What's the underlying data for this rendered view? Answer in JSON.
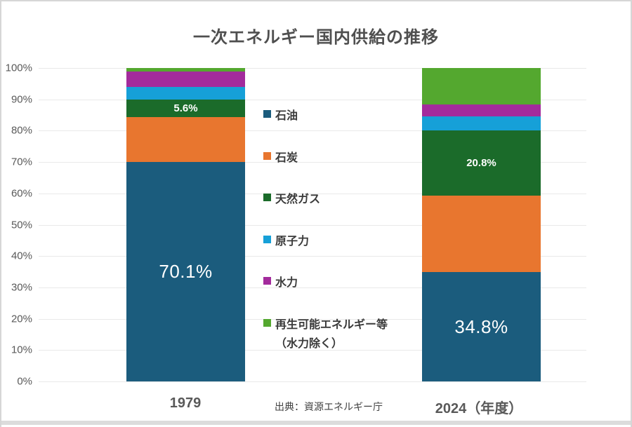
{
  "chart_data": {
    "type": "bar",
    "variant": "stacked-100-percent",
    "title": "一次エネルギー国内供給の推移",
    "source": "出典：資源エネルギー庁",
    "categories": [
      "1979",
      "2024（年度）"
    ],
    "series": [
      {
        "name": "石油",
        "color": "#1B5C7D",
        "values": [
          70.1,
          34.8
        ],
        "labels": [
          "70.1%",
          "34.8%"
        ]
      },
      {
        "name": "石炭",
        "color": "#E8762F",
        "values": [
          14.3,
          24.5
        ],
        "labels": [
          null,
          null
        ]
      },
      {
        "name": "天然ガス",
        "color": "#1B6B2A",
        "values": [
          5.6,
          20.8
        ],
        "labels": [
          "5.6%",
          "20.8%"
        ]
      },
      {
        "name": "原子力",
        "color": "#16A0D8",
        "values": [
          3.9,
          4.5
        ],
        "labels": [
          null,
          null
        ]
      },
      {
        "name": "水力",
        "color": "#A32B9C",
        "values": [
          5.0,
          3.7
        ],
        "labels": [
          null,
          null
        ]
      },
      {
        "name": "再生可能エネルギー等\n（水力除く）",
        "color": "#54A82F",
        "values": [
          1.1,
          11.7
        ],
        "labels": [
          null,
          null
        ]
      }
    ],
    "y_axis": {
      "ticks": [
        "0%",
        "10%",
        "20%",
        "30%",
        "40%",
        "50%",
        "60%",
        "70%",
        "80%",
        "90%",
        "100%"
      ],
      "min": 0,
      "max": 100
    },
    "grid": true,
    "legend_position": "center-between-bars"
  }
}
